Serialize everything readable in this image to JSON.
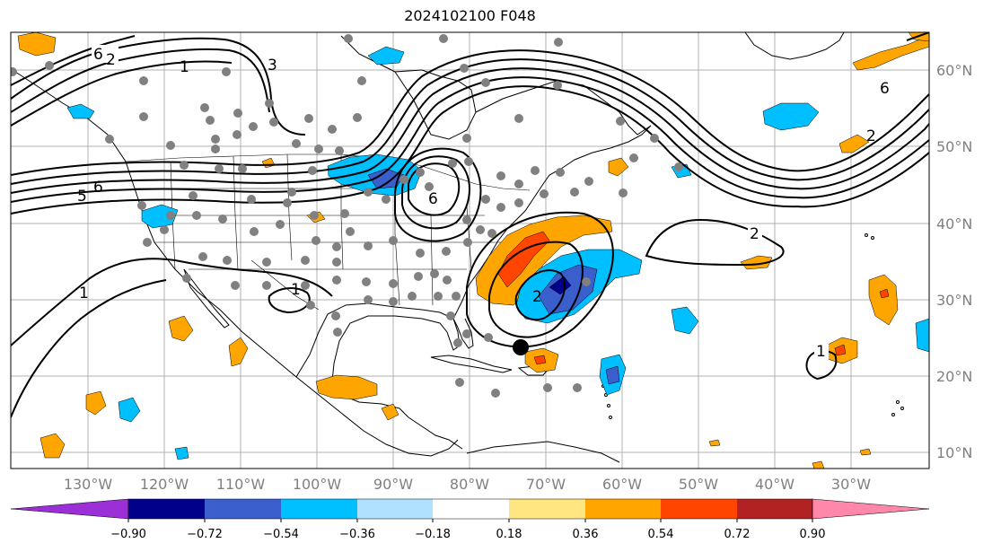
{
  "title": "2024102100 F048",
  "lon_labels": [
    "130°W",
    "120°W",
    "110°W",
    "100°W",
    "90°W",
    "80°W",
    "70°W",
    "60°W",
    "50°W",
    "40°W",
    "30°W"
  ],
  "lat_labels": [
    "60°N",
    "50°N",
    "40°N",
    "30°N",
    "20°N",
    "10°N"
  ],
  "colorbar": {
    "ticks": [
      "−0.90",
      "−0.72",
      "−0.54",
      "−0.36",
      "−0.18",
      "0.18",
      "0.36",
      "0.54",
      "0.72",
      "0.90"
    ],
    "colors": [
      "#9b30d9",
      "#00008b",
      "#3a5fcd",
      "#00bfff",
      "#b0e2ff",
      "#ffffff",
      "#ffe680",
      "#ffa500",
      "#ff4500",
      "#b22222",
      "#ff88aa"
    ]
  },
  "contour_labels": [
    "6",
    "2",
    "1",
    "3",
    "5",
    "6",
    "1",
    "1",
    "2",
    "6",
    "6",
    "2",
    "2",
    "1"
  ],
  "colors": {
    "land_outline": "#000000",
    "station_dot": "#808080",
    "gridline": "#b0b0b0",
    "label_gray": "#808080"
  }
}
